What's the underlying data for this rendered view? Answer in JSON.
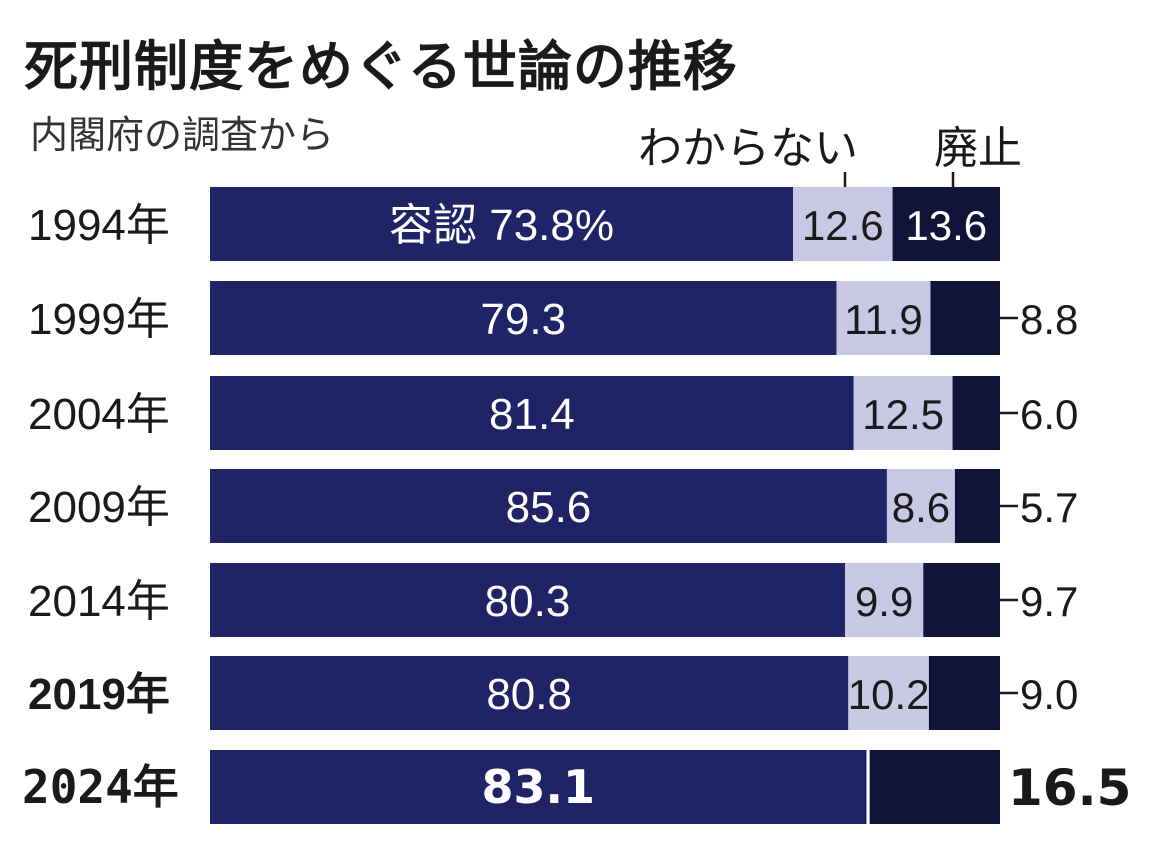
{
  "title": "死刑制度をめぐる世論の推移",
  "subtitle": "内閣府の調査から",
  "colors": {
    "approve": "#1e2466",
    "unknown": "#c8c8e4",
    "abolish": "#0f1438",
    "label_dark": "#1a1a1a",
    "label_light": "#ffffff"
  },
  "chart_data": {
    "type": "bar",
    "orientation": "horizontal",
    "stacked": true,
    "categories": [
      "1994年",
      "1999年",
      "2004年",
      "2009年",
      "2014年",
      "2019年",
      "2024年"
    ],
    "legend_labels": {
      "unknown": "わからない",
      "abolish": "廃止"
    },
    "first_bar_prefix": "容認",
    "percent_suffix": "%",
    "series": [
      {
        "key": "approve",
        "values": [
          73.8,
          79.3,
          81.4,
          85.6,
          80.3,
          80.8,
          83.1
        ],
        "labels": [
          "73.8",
          "79.3",
          "81.4",
          "85.6",
          "80.3",
          "80.8",
          "83.1"
        ]
      },
      {
        "key": "unknown",
        "values": [
          12.6,
          11.9,
          12.5,
          8.6,
          9.9,
          10.2,
          0.4
        ],
        "labels": [
          "12.6",
          "11.9",
          "12.5",
          "8.6",
          "9.9",
          "10.2",
          ""
        ]
      },
      {
        "key": "abolish",
        "values": [
          13.6,
          8.8,
          6.0,
          5.7,
          9.7,
          9.0,
          16.5
        ],
        "labels": [
          "13.6",
          "8.8",
          "6.0",
          "5.7",
          "9.7",
          "9.0",
          "16.5"
        ]
      }
    ],
    "bold_categories": [
      "2019年",
      "2024年"
    ],
    "xlim": [
      0,
      100
    ]
  }
}
